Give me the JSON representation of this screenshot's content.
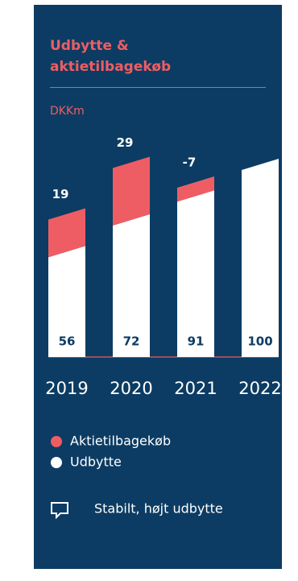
{
  "chart_data": {
    "type": "bar",
    "stacked": true,
    "title": "Udbytte & aktietilbagekøb",
    "unit": "DKKm",
    "categories": [
      "2019",
      "2020",
      "2021",
      "2022"
    ],
    "series": [
      {
        "name": "Udbytte",
        "color": "#ffffff",
        "values": [
          56,
          72,
          91,
          100
        ]
      },
      {
        "name": "Aktietilbagekøb",
        "color": "#ee5d63",
        "values": [
          19,
          29,
          -7,
          null
        ]
      }
    ],
    "annotation": "Stabilt, højt udbytte"
  }
}
